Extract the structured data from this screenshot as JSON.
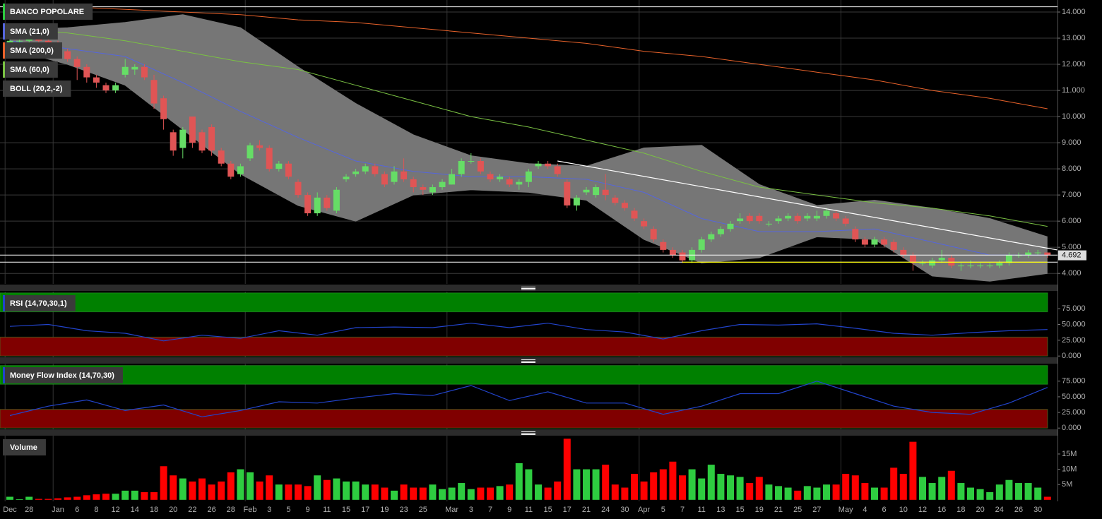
{
  "chart_data": [
    {
      "type": "candlestick",
      "title": "BANCO POPOLARE",
      "color": "#2ecc40",
      "up_color": "#66dd66",
      "down_color": "#e05555",
      "categories": [
        "Dec",
        null,
        "28",
        null,
        null,
        "Jan",
        null,
        "6",
        null,
        "8",
        null,
        "12",
        null,
        "14",
        null,
        "18",
        null,
        "20",
        null,
        "22",
        null,
        "26",
        null,
        "28",
        null,
        "Feb",
        null,
        "3",
        null,
        "5",
        null,
        "9",
        null,
        "11",
        null,
        "15",
        null,
        "17",
        null,
        "19",
        null,
        "23",
        null,
        "25",
        null,
        null,
        "Mar",
        null,
        "3",
        null,
        "7",
        null,
        "9",
        null,
        "11",
        null,
        "15",
        null,
        "17",
        null,
        "21",
        null,
        "24",
        null,
        "30",
        null,
        "Apr",
        null,
        "5",
        null,
        "7",
        null,
        "11",
        null,
        "13",
        null,
        "15",
        null,
        "19",
        null,
        "21",
        null,
        "25",
        null,
        "27",
        null,
        null,
        "May",
        null,
        "4",
        null,
        "6",
        null,
        "10",
        null,
        "12",
        null,
        "16",
        null,
        "18",
        null,
        "20",
        null,
        "24",
        null,
        "26",
        null,
        "30",
        null
      ],
      "open": [
        12.8,
        12.9,
        12.9,
        13.0,
        12.9,
        12.8,
        12.5,
        12.2,
        11.9,
        11.5,
        11.2,
        11.0,
        11.6,
        11.8,
        11.9,
        11.4,
        10.7,
        9.4,
        8.8,
        10.0,
        9.4,
        9.6,
        8.7,
        8.2,
        7.8,
        8.4,
        8.9,
        8.8,
        8.0,
        8.2,
        7.5,
        7.0,
        6.3,
        6.9,
        6.4,
        7.6,
        7.8,
        7.9,
        8.1,
        7.8,
        7.5,
        7.9,
        7.6,
        7.3,
        7.1,
        7.3,
        7.4,
        7.8,
        8.3,
        8.3,
        7.8,
        7.6,
        7.6,
        7.4,
        7.5,
        8.1,
        8.2,
        8.1,
        7.5,
        6.6,
        7.1,
        7.0,
        7.2,
        6.9,
        6.7,
        6.4,
        6.0,
        5.7,
        5.2,
        4.9,
        4.8,
        4.5,
        4.9,
        5.3,
        5.5,
        5.7,
        6.0,
        6.2,
        6.2,
        5.9,
        6.0,
        6.1,
        6.2,
        6.1,
        6.1,
        6.2,
        6.3,
        6.1,
        5.7,
        5.3,
        5.1,
        5.3,
        5.2,
        4.9,
        4.7,
        4.4,
        4.3,
        4.5,
        4.6,
        4.3,
        4.3,
        4.3,
        4.3,
        4.3,
        4.4,
        4.7,
        4.7,
        4.8,
        4.8
      ],
      "high": [
        13.0,
        13.0,
        13.1,
        13.1,
        13.0,
        12.9,
        12.6,
        12.3,
        12.0,
        11.6,
        11.3,
        11.3,
        12.2,
        12.0,
        12.0,
        11.6,
        10.8,
        9.5,
        9.6,
        10.0,
        9.5,
        9.7,
        8.8,
        8.3,
        8.2,
        9.0,
        9.1,
        8.9,
        8.3,
        8.3,
        7.6,
        7.1,
        7.1,
        7.0,
        7.3,
        7.8,
        8.0,
        8.2,
        8.2,
        7.9,
        8.1,
        8.4,
        7.7,
        7.4,
        7.4,
        7.6,
        8.0,
        8.4,
        8.6,
        8.4,
        7.9,
        7.8,
        7.7,
        7.6,
        8.0,
        8.3,
        8.3,
        8.2,
        7.6,
        7.0,
        7.3,
        7.4,
        7.8,
        7.0,
        6.8,
        6.5,
        6.1,
        5.8,
        5.3,
        5.0,
        4.9,
        5.0,
        5.4,
        5.6,
        5.8,
        6.0,
        6.3,
        6.3,
        6.3,
        6.0,
        6.2,
        6.3,
        6.3,
        6.3,
        6.4,
        6.5,
        6.4,
        6.2,
        5.8,
        5.4,
        5.4,
        5.4,
        5.3,
        5.0,
        4.8,
        4.5,
        4.6,
        4.9,
        4.7,
        4.4,
        4.5,
        4.4,
        4.4,
        4.5,
        4.8,
        4.8,
        4.9,
        4.9,
        4.8
      ],
      "low": [
        12.7,
        12.8,
        12.8,
        12.8,
        12.6,
        12.4,
        12.1,
        11.4,
        11.3,
        11.1,
        10.9,
        10.9,
        11.5,
        11.6,
        11.4,
        10.3,
        9.5,
        8.5,
        8.4,
        8.8,
        8.6,
        8.5,
        8.1,
        7.6,
        7.7,
        8.3,
        8.7,
        7.9,
        7.9,
        7.6,
        6.9,
        6.2,
        6.2,
        6.4,
        6.3,
        7.5,
        7.7,
        7.8,
        7.7,
        7.3,
        7.4,
        7.5,
        7.1,
        7.0,
        7.0,
        7.2,
        7.4,
        7.7,
        8.2,
        7.8,
        7.5,
        7.5,
        7.3,
        7.2,
        7.3,
        8.0,
        8.0,
        7.7,
        6.5,
        6.4,
        7.0,
        6.9,
        6.8,
        6.6,
        6.4,
        6.0,
        5.7,
        5.2,
        4.8,
        4.6,
        4.4,
        4.4,
        4.8,
        5.2,
        5.4,
        5.6,
        5.9,
        5.9,
        5.9,
        5.8,
        5.9,
        6.0,
        5.9,
        6.0,
        6.0,
        6.1,
        6.0,
        5.8,
        5.2,
        5.0,
        5.0,
        5.0,
        4.8,
        4.6,
        4.1,
        4.3,
        4.2,
        4.4,
        4.2,
        4.1,
        4.2,
        4.2,
        4.2,
        4.2,
        4.3,
        4.6,
        4.6,
        4.7,
        4.6
      ],
      "close": [
        12.9,
        12.9,
        13.0,
        12.9,
        12.8,
        12.5,
        12.2,
        11.9,
        11.5,
        11.3,
        11.0,
        11.2,
        11.9,
        11.9,
        11.5,
        10.5,
        9.9,
        8.7,
        9.5,
        9.0,
        8.7,
        8.7,
        8.2,
        7.7,
        8.1,
        8.9,
        8.8,
        8.0,
        8.2,
        7.7,
        7.0,
        6.3,
        6.9,
        6.5,
        7.2,
        7.7,
        7.9,
        8.1,
        7.8,
        7.4,
        7.9,
        7.6,
        7.3,
        7.2,
        7.3,
        7.5,
        7.8,
        8.3,
        8.3,
        7.9,
        7.6,
        7.7,
        7.4,
        7.5,
        7.9,
        8.2,
        8.1,
        7.8,
        6.6,
        6.9,
        7.2,
        7.3,
        7.0,
        6.7,
        6.5,
        6.1,
        5.8,
        5.3,
        4.9,
        4.7,
        4.5,
        4.9,
        5.3,
        5.5,
        5.7,
        5.9,
        6.1,
        6.0,
        6.0,
        5.9,
        6.1,
        6.2,
        6.0,
        6.2,
        6.2,
        6.4,
        6.1,
        5.9,
        5.3,
        5.1,
        5.3,
        5.1,
        4.9,
        4.7,
        4.4,
        4.4,
        4.5,
        4.6,
        4.3,
        4.3,
        4.3,
        4.3,
        4.3,
        4.4,
        4.7,
        4.7,
        4.8,
        4.8,
        4.692
      ],
      "overlays": [
        {
          "name": "SMA (21,0)",
          "color": "#5566dd",
          "x": [
            0,
            6,
            12,
            18,
            24,
            30,
            36,
            42,
            48,
            54,
            60,
            66,
            72,
            78,
            84,
            90,
            96,
            102,
            108
          ],
          "values": [
            12.9,
            12.6,
            12.3,
            11.3,
            10.2,
            9.2,
            8.3,
            7.9,
            7.7,
            7.7,
            7.6,
            7.1,
            6.1,
            5.6,
            5.6,
            5.7,
            5.2,
            4.7,
            4.7
          ]
        },
        {
          "name": "SMA (200,0)",
          "color": "#e8622a",
          "x": [
            0,
            6,
            12,
            18,
            24,
            30,
            36,
            42,
            48,
            54,
            60,
            66,
            72,
            78,
            84,
            90,
            96,
            102,
            108
          ],
          "values": [
            14.3,
            14.2,
            14.1,
            14.0,
            13.9,
            13.7,
            13.6,
            13.4,
            13.2,
            13.0,
            12.8,
            12.5,
            12.3,
            12.0,
            11.7,
            11.4,
            11.0,
            10.7,
            10.3
          ]
        },
        {
          "name": "SMA (60,0)",
          "color": "#7ac143",
          "x": [
            0,
            6,
            12,
            18,
            24,
            30,
            36,
            42,
            48,
            54,
            60,
            66,
            72,
            78,
            84,
            90,
            96,
            102,
            108
          ],
          "values": [
            13.4,
            13.2,
            12.9,
            12.5,
            12.1,
            11.8,
            11.2,
            10.6,
            10.0,
            9.6,
            9.1,
            8.6,
            7.9,
            7.3,
            7.0,
            6.7,
            6.5,
            6.2,
            5.8
          ]
        }
      ],
      "band": {
        "name": "BOLL (20,2,-2)",
        "color": "#767676",
        "x": [
          0,
          6,
          12,
          18,
          24,
          30,
          36,
          42,
          48,
          54,
          60,
          66,
          72,
          78,
          84,
          90,
          96,
          102,
          108
        ],
        "upper": [
          13.3,
          13.4,
          13.6,
          13.9,
          13.4,
          11.9,
          10.5,
          9.3,
          8.5,
          8.2,
          8.1,
          8.8,
          8.9,
          7.4,
          6.6,
          6.8,
          6.5,
          6.1,
          5.4
        ],
        "lower": [
          12.6,
          12.0,
          11.2,
          9.5,
          7.8,
          6.6,
          6.0,
          7.0,
          7.2,
          7.1,
          6.8,
          5.3,
          4.4,
          4.6,
          5.4,
          5.3,
          3.9,
          3.7,
          4.0
        ]
      },
      "lines": [
        {
          "color": "#ffffff",
          "x": [
            57,
            109
          ],
          "values": [
            8.3,
            4.9
          ]
        },
        {
          "color": "#ffff00",
          "x": [
            70,
            108
          ],
          "values": [
            4.43,
            4.43
          ]
        }
      ],
      "hlines": [
        {
          "value": 14.2,
          "color": "#ffffff"
        },
        {
          "value": 4.7,
          "color": "#ffffff"
        },
        {
          "value": 4.43,
          "color": "#ffffff"
        }
      ],
      "ylim": [
        3.6,
        14.46
      ],
      "yticks": [
        {
          "value": 4,
          "label": "4.000"
        },
        {
          "value": 5,
          "label": "5.000"
        },
        {
          "value": 6,
          "label": "6.000"
        },
        {
          "value": 7,
          "label": "7.000"
        },
        {
          "value": 8,
          "label": "8.000"
        },
        {
          "value": 9,
          "label": "9.000"
        },
        {
          "value": 10,
          "label": "10.000"
        },
        {
          "value": 11,
          "label": "11.000"
        },
        {
          "value": 12,
          "label": "12.000"
        },
        {
          "value": 13,
          "label": "13.000"
        },
        {
          "value": 14,
          "label": "14.000"
        }
      ],
      "grid": true
    },
    {
      "type": "line",
      "title": "RSI (14,70,30,1)",
      "color": "#2244cc",
      "x": [
        0,
        4,
        8,
        12,
        16,
        20,
        24,
        28,
        32,
        36,
        40,
        44,
        48,
        52,
        56,
        60,
        64,
        68,
        72,
        76,
        80,
        84,
        88,
        92,
        96,
        100,
        104,
        108
      ],
      "values": [
        47,
        50,
        40,
        36,
        24,
        33,
        28,
        40,
        33,
        45,
        46,
        45,
        52,
        45,
        52,
        42,
        38,
        27,
        40,
        50,
        49,
        51,
        44,
        36,
        33,
        37,
        40,
        42
      ],
      "zones": [
        {
          "from": 70,
          "to": 100,
          "color": "#008000"
        },
        {
          "from": 0,
          "to": 30,
          "color": "#800000"
        }
      ],
      "ylim": [
        -2,
        102
      ],
      "yticks": [
        {
          "value": 0,
          "label": "0.000"
        },
        {
          "value": 25,
          "label": "25.000"
        },
        {
          "value": 50,
          "label": "50.000"
        },
        {
          "value": 75,
          "label": "75.000"
        }
      ],
      "grid": false
    },
    {
      "type": "line",
      "title": "Money Flow Index (14,70,30)",
      "color": "#2244cc",
      "x": [
        0,
        4,
        8,
        12,
        16,
        20,
        24,
        28,
        32,
        36,
        40,
        44,
        48,
        52,
        56,
        60,
        64,
        68,
        72,
        76,
        80,
        84,
        88,
        92,
        96,
        100,
        104,
        108
      ],
      "values": [
        20,
        35,
        45,
        28,
        37,
        18,
        28,
        42,
        40,
        48,
        55,
        52,
        68,
        44,
        58,
        40,
        40,
        22,
        35,
        55,
        55,
        75,
        55,
        35,
        25,
        22,
        40,
        65
      ],
      "zones": [
        {
          "from": 70,
          "to": 100,
          "color": "#008000"
        },
        {
          "from": 0,
          "to": 30,
          "color": "#800000"
        }
      ],
      "ylim": [
        -2,
        103
      ],
      "yticks": [
        {
          "value": 0,
          "label": "0.000"
        },
        {
          "value": 25,
          "label": "25.000"
        },
        {
          "value": 50,
          "label": "50.000"
        },
        {
          "value": 75,
          "label": "75.000"
        }
      ],
      "grid": false
    },
    {
      "type": "bar",
      "title": "Volume",
      "up_color": "#2ecc40",
      "down_color": "#ff0000",
      "values": [
        1,
        0.2,
        1,
        0.3,
        0.3,
        0.5,
        0.8,
        1,
        1.5,
        1.8,
        2,
        2,
        3,
        3,
        2.5,
        2.5,
        11,
        8,
        7,
        6,
        7,
        5,
        6,
        9,
        10,
        9,
        6,
        8,
        5,
        5,
        5,
        4.5,
        8,
        6.5,
        7,
        6,
        6,
        5,
        5,
        4,
        3,
        5,
        4,
        4,
        5,
        3.5,
        4,
        5.5,
        3.5,
        4,
        4,
        4.5,
        5,
        12,
        10,
        5,
        4,
        6,
        20,
        10,
        10,
        10,
        11.5,
        5,
        4,
        8.5,
        6,
        9,
        10,
        12.5,
        8,
        10,
        7,
        11.5,
        8.5,
        8,
        7.5,
        5.5,
        7.5,
        5,
        4.5,
        4,
        3,
        4.5,
        4,
        5,
        5,
        8.5,
        8,
        5.5,
        4,
        4,
        10.5,
        8.5,
        19,
        7.5,
        5.5,
        7.5,
        9.5,
        5.5,
        4,
        3.5,
        2.5,
        5,
        6.5,
        5.5,
        5.5,
        4,
        1
      ],
      "ylim": [
        -0.5,
        21
      ],
      "yticks": [
        {
          "value": 5,
          "label": "5M"
        },
        {
          "value": 10,
          "label": "10M"
        },
        {
          "value": 15,
          "label": "15M"
        }
      ],
      "grid": false
    }
  ]
}
